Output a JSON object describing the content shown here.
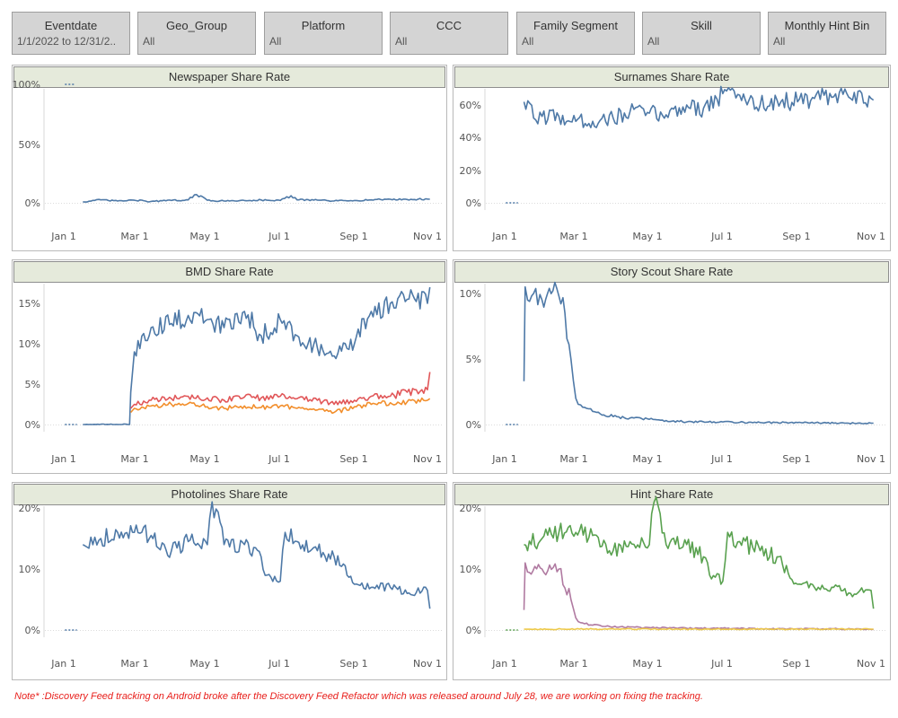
{
  "filters": [
    {
      "title": "Eventdate",
      "value": "1/1/2022 to 12/31/2.."
    },
    {
      "title": "Geo_Group",
      "value": "All"
    },
    {
      "title": "Platform",
      "value": "All"
    },
    {
      "title": "CCC",
      "value": "All"
    },
    {
      "title": "Family Segment",
      "value": "All"
    },
    {
      "title": "Skill",
      "value": "All"
    },
    {
      "title": "Monthly Hint Bin",
      "value": "All"
    }
  ],
  "note": "Note* :Discovery Feed tracking on Android broke after the Discovery Feed Refactor which was released around July 28, we are working on fixing the tracking.",
  "colors": {
    "blue": "#4e79a7",
    "orange": "#f28e2b",
    "red": "#e15759",
    "green": "#59a14f",
    "purple": "#b07aa1",
    "yellow": "#edc948",
    "grid": "#dcdcdc",
    "title_bg": "#e5eadb"
  },
  "chart_data": [
    {
      "type": "line",
      "title": "Newspaper Share Rate",
      "x_ticks": [
        "Jan 1",
        "Mar 1",
        "May 1",
        "Jul 1",
        "Sep 1",
        "Nov 1"
      ],
      "y_ticks": [
        "0%",
        "50%",
        "100%"
      ],
      "ylim": [
        0,
        100
      ],
      "series": [
        {
          "color": "#4e79a7",
          "style": "dotted",
          "x": [
            "2022-01-02",
            "2022-01-10"
          ],
          "values": [
            100,
            100
          ]
        },
        {
          "color": "#4e79a7",
          "style": "solid",
          "x": [
            "2022-01-17",
            "2022-02-01",
            "2022-02-15",
            "2022-03-01",
            "2022-03-15",
            "2022-04-01",
            "2022-04-15",
            "2022-04-22",
            "2022-05-01",
            "2022-05-15",
            "2022-06-01",
            "2022-06-15",
            "2022-07-01",
            "2022-07-10",
            "2022-07-15",
            "2022-08-01",
            "2022-08-15",
            "2022-09-01",
            "2022-09-15",
            "2022-10-01",
            "2022-10-15",
            "2022-11-01",
            "2022-11-03"
          ],
          "values": [
            0.8,
            2.5,
            1.5,
            2.2,
            1.2,
            2.0,
            2.5,
            7,
            2.2,
            1.5,
            2.0,
            2.4,
            2.0,
            6,
            2.5,
            2.3,
            1.6,
            2.0,
            2.5,
            3.0,
            2.8,
            3.2,
            3.0
          ]
        }
      ]
    },
    {
      "type": "line",
      "title": "Surnames Share Rate",
      "x_ticks": [
        "Jan 1",
        "Mar 1",
        "May 1",
        "Jul 1",
        "Sep 1",
        "Nov 1"
      ],
      "y_ticks": [
        "0%",
        "20%",
        "40%",
        "60%"
      ],
      "ylim": [
        0,
        70
      ],
      "series": [
        {
          "color": "#4e79a7",
          "style": "dotted",
          "x": [
            "2022-01-02",
            "2022-01-12"
          ],
          "values": [
            0,
            0
          ]
        },
        {
          "color": "#4e79a7",
          "style": "solid",
          "x": [
            "2022-01-17",
            "2022-01-25",
            "2022-02-01",
            "2022-02-15",
            "2022-03-01",
            "2022-03-15",
            "2022-04-01",
            "2022-04-15",
            "2022-05-01",
            "2022-05-15",
            "2022-06-01",
            "2022-06-15",
            "2022-07-01",
            "2022-07-15",
            "2022-08-01",
            "2022-08-15",
            "2022-09-01",
            "2022-09-15",
            "2022-10-01",
            "2022-10-15",
            "2022-11-01",
            "2022-11-03"
          ],
          "values": [
            62,
            52,
            53,
            53,
            50,
            50,
            52,
            56,
            55,
            54,
            60,
            58,
            67,
            66,
            60,
            63,
            62,
            64,
            65,
            64,
            64,
            63
          ]
        }
      ]
    },
    {
      "type": "line",
      "title": "BMD Share Rate",
      "x_ticks": [
        "Jan 1",
        "Mar 1",
        "May 1",
        "Jul 1",
        "Sep 1",
        "Nov 1"
      ],
      "y_ticks": [
        "0%",
        "5%",
        "10%",
        "15%"
      ],
      "ylim": [
        0,
        18
      ],
      "series": [
        {
          "color": "#4e79a7",
          "style": "dotted",
          "x": [
            "2022-01-02",
            "2022-01-12"
          ],
          "values": [
            0,
            0
          ]
        },
        {
          "color": "#4e79a7",
          "style": "solid",
          "x": [
            "2022-01-17",
            "2022-02-25",
            "2022-02-26",
            "2022-03-01",
            "2022-03-15",
            "2022-04-01",
            "2022-04-15",
            "2022-05-01",
            "2022-05-15",
            "2022-06-01",
            "2022-06-15",
            "2022-07-01",
            "2022-07-15",
            "2022-08-01",
            "2022-08-15",
            "2022-09-01",
            "2022-09-15",
            "2022-10-01",
            "2022-10-15",
            "2022-11-01",
            "2022-11-03"
          ],
          "values": [
            0,
            0,
            4,
            9,
            12,
            12.5,
            13.5,
            13,
            12,
            14,
            11,
            13,
            11,
            9.5,
            8.5,
            10,
            14,
            15,
            15.5,
            15,
            17
          ]
        },
        {
          "color": "#e15759",
          "style": "solid",
          "x": [
            "2022-02-26",
            "2022-03-01",
            "2022-03-15",
            "2022-04-01",
            "2022-04-15",
            "2022-05-01",
            "2022-05-15",
            "2022-06-01",
            "2022-06-15",
            "2022-07-01",
            "2022-07-15",
            "2022-08-01",
            "2022-08-15",
            "2022-09-01",
            "2022-09-15",
            "2022-10-01",
            "2022-10-15",
            "2022-11-01",
            "2022-11-03"
          ],
          "values": [
            2,
            2.5,
            3,
            3.2,
            3.5,
            3.3,
            3.0,
            3.4,
            3.3,
            3.5,
            3.2,
            3.0,
            2.5,
            3.0,
            3.5,
            3.5,
            4.0,
            4.3,
            6.5
          ]
        },
        {
          "color": "#f28e2b",
          "style": "solid",
          "x": [
            "2022-02-26",
            "2022-03-01",
            "2022-03-15",
            "2022-04-01",
            "2022-04-15",
            "2022-05-01",
            "2022-05-15",
            "2022-06-01",
            "2022-06-15",
            "2022-07-01",
            "2022-07-15",
            "2022-08-01",
            "2022-08-15",
            "2022-09-01",
            "2022-09-15",
            "2022-10-01",
            "2022-10-15",
            "2022-11-01",
            "2022-11-03"
          ],
          "values": [
            1.5,
            2.0,
            2.3,
            2.5,
            2.6,
            2.2,
            2.0,
            2.3,
            2.1,
            2.3,
            2.0,
            1.8,
            1.5,
            2.2,
            2.5,
            2.7,
            2.8,
            3.0,
            3.2
          ]
        }
      ]
    },
    {
      "type": "line",
      "title": "Story Scout Share Rate",
      "x_ticks": [
        "Jan 1",
        "Mar 1",
        "May 1",
        "Jul 1",
        "Sep 1",
        "Nov 1"
      ],
      "y_ticks": [
        "0%",
        "5%",
        "10%"
      ],
      "ylim": [
        0,
        11.5
      ],
      "series": [
        {
          "color": "#4e79a7",
          "style": "dotted",
          "x": [
            "2022-01-02",
            "2022-01-12"
          ],
          "values": [
            0,
            0
          ]
        },
        {
          "color": "#4e79a7",
          "style": "solid",
          "x": [
            "2022-01-17",
            "2022-01-18",
            "2022-01-20",
            "2022-01-25",
            "2022-02-01",
            "2022-02-10",
            "2022-02-15",
            "2022-02-20",
            "2022-02-25",
            "2022-03-01",
            "2022-03-05",
            "2022-03-15",
            "2022-04-01",
            "2022-04-15",
            "2022-05-01",
            "2022-05-15",
            "2022-06-01",
            "2022-07-01",
            "2022-08-01",
            "2022-09-01",
            "2022-10-01",
            "2022-11-01",
            "2022-11-03"
          ],
          "values": [
            3.3,
            10.5,
            9.5,
            10.0,
            9.5,
            10.2,
            9.8,
            8.5,
            5.0,
            2.0,
            1.5,
            1.0,
            0.6,
            0.5,
            0.4,
            0.3,
            0.2,
            0.2,
            0.15,
            0.15,
            0.1,
            0.1,
            0.1
          ]
        }
      ]
    },
    {
      "type": "line",
      "title": "Photolines Share Rate",
      "x_ticks": [
        "Jan 1",
        "Mar 1",
        "May 1",
        "Jul 1",
        "Sep 1",
        "Nov 1"
      ],
      "y_ticks": [
        "0%",
        "10%",
        "20%"
      ],
      "ylim": [
        0,
        21.5
      ],
      "series": [
        {
          "color": "#4e79a7",
          "style": "dotted",
          "x": [
            "2022-01-02",
            "2022-01-12"
          ],
          "values": [
            0,
            0
          ]
        },
        {
          "color": "#4e79a7",
          "style": "solid",
          "x": [
            "2022-01-17",
            "2022-02-01",
            "2022-02-15",
            "2022-03-01",
            "2022-03-15",
            "2022-04-01",
            "2022-04-15",
            "2022-05-01",
            "2022-05-05",
            "2022-05-15",
            "2022-06-01",
            "2022-06-15",
            "2022-06-20",
            "2022-07-01",
            "2022-07-05",
            "2022-07-15",
            "2022-08-01",
            "2022-08-15",
            "2022-09-01",
            "2022-09-15",
            "2022-10-01",
            "2022-10-15",
            "2022-11-01",
            "2022-11-03"
          ],
          "values": [
            14,
            15,
            16,
            16,
            15.5,
            13,
            14.5,
            14,
            21,
            14,
            14,
            12,
            9,
            8,
            16,
            14.5,
            13,
            12,
            7.5,
            7,
            7,
            6,
            6.5,
            3.5
          ]
        }
      ]
    },
    {
      "type": "line",
      "title": "Hint Share Rate",
      "x_ticks": [
        "Jan 1",
        "Mar 1",
        "May 1",
        "Jul 1",
        "Sep 1",
        "Nov 1"
      ],
      "y_ticks": [
        "0%",
        "10%",
        "20%"
      ],
      "ylim": [
        0,
        21.5
      ],
      "series": [
        {
          "color": "#59a14f",
          "style": "dotted",
          "x": [
            "2022-01-02",
            "2022-01-12"
          ],
          "values": [
            0,
            0
          ]
        },
        {
          "color": "#59a14f",
          "style": "solid",
          "x": [
            "2022-01-17",
            "2022-02-01",
            "2022-02-15",
            "2022-03-01",
            "2022-03-15",
            "2022-04-01",
            "2022-04-15",
            "2022-05-01",
            "2022-05-05",
            "2022-05-15",
            "2022-06-01",
            "2022-06-15",
            "2022-06-20",
            "2022-07-01",
            "2022-07-05",
            "2022-07-15",
            "2022-08-01",
            "2022-08-15",
            "2022-09-01",
            "2022-09-15",
            "2022-10-01",
            "2022-10-15",
            "2022-11-01",
            "2022-11-03"
          ],
          "values": [
            14,
            15,
            16,
            16,
            15.5,
            13,
            14.5,
            14,
            21,
            14,
            14,
            12,
            9,
            8,
            16,
            14.5,
            13,
            12,
            7.5,
            7,
            7,
            6,
            6.5,
            3.5
          ]
        },
        {
          "color": "#b07aa1",
          "style": "solid",
          "x": [
            "2022-01-17",
            "2022-01-18",
            "2022-01-20",
            "2022-02-01",
            "2022-02-15",
            "2022-02-25",
            "2022-03-01",
            "2022-03-05",
            "2022-03-15",
            "2022-04-01",
            "2022-05-01",
            "2022-06-01",
            "2022-07-01",
            "2022-08-01",
            "2022-09-01",
            "2022-10-01",
            "2022-11-01",
            "2022-11-03"
          ],
          "values": [
            3.3,
            11,
            9.5,
            10,
            10,
            5,
            2,
            1.2,
            0.8,
            0.5,
            0.4,
            0.3,
            0.3,
            0.2,
            0.2,
            0.2,
            0.1,
            0.1
          ]
        },
        {
          "color": "#edc948",
          "style": "solid",
          "x": [
            "2022-01-17",
            "2022-03-01",
            "2022-05-01",
            "2022-07-01",
            "2022-09-01",
            "2022-11-01",
            "2022-11-03"
          ],
          "values": [
            0.15,
            0.15,
            0.15,
            0.15,
            0.15,
            0.15,
            0.15
          ]
        }
      ]
    }
  ]
}
